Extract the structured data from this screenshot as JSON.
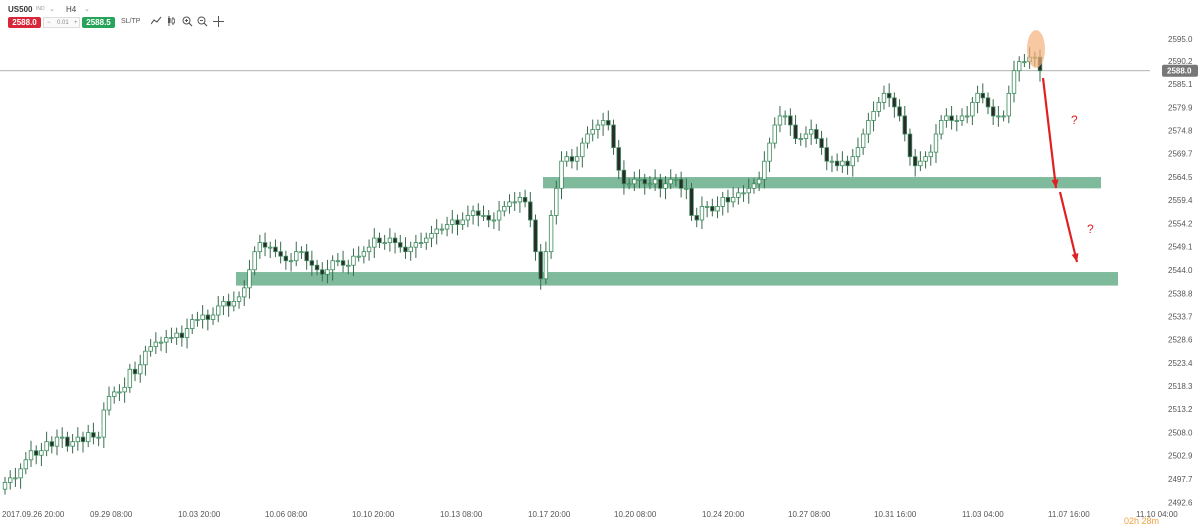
{
  "toolbar": {
    "symbol": "US500",
    "symbol_sub": "IND",
    "timeframe": "H4",
    "sell_price": "2588.0",
    "volume_minus": "−",
    "volume": "0.01",
    "volume_plus": "+",
    "buy_price": "2588.5",
    "sltp_label": "SL/TP",
    "icons": [
      "line-chart-icon",
      "candles-icon",
      "zoom-in-icon",
      "zoom-out-icon",
      "crosshair-icon"
    ]
  },
  "timer": "02h 28m",
  "colors": {
    "up_candle": "#ffffff",
    "down_candle": "#2a2a2a",
    "candle_border": "#3a8a5a",
    "zone": "#6aae8c",
    "arrow": "#e02020",
    "question": "#e02020",
    "highlight": "#f5b07a",
    "price_label_bg": "#777777"
  },
  "chart_data": {
    "type": "candlestick",
    "title": "",
    "xlabel": "",
    "ylabel": "",
    "ylim": [
      2492.0,
      2597.0
    ],
    "y_ticks": [
      "2595.0",
      "2590.2",
      "2585.1",
      "2579.9",
      "2574.8",
      "2569.7",
      "2564.5",
      "2559.4",
      "2554.2",
      "2549.1",
      "2544.0",
      "2538.8",
      "2533.7",
      "2528.6",
      "2523.4",
      "2518.3",
      "2513.2",
      "2508.0",
      "2502.9",
      "2497.7",
      "2492.6"
    ],
    "x_ticks": [
      "2017.09.26 20:00",
      "09.29 08:00",
      "10.03 20:00",
      "10.06 08:00",
      "10.10 20:00",
      "10.13 08:00",
      "10.17 20:00",
      "10.20 08:00",
      "10.24 20:00",
      "10.27 08:00",
      "10.31 16:00",
      "11.03 04:00",
      "11.07 16:00",
      "11.10 04:00"
    ],
    "current_price": "2588.0",
    "closes": [
      2497,
      2498,
      2498,
      2500,
      2502,
      2504,
      2503,
      2504,
      2506,
      2505,
      2507,
      2507,
      2505,
      2506,
      2507,
      2506,
      2508,
      2507,
      2507,
      2513,
      2516,
      2517,
      2517,
      2518,
      2522,
      2521,
      2523,
      2526,
      2527,
      2528,
      2528,
      2529,
      2529,
      2530,
      2529,
      2531,
      2533,
      2533,
      2534,
      2533,
      2534,
      2536,
      2537,
      2536,
      2537,
      2538,
      2540,
      2544,
      2548,
      2550,
      2549,
      2549,
      2548,
      2547,
      2546,
      2546,
      2548,
      2548,
      2546,
      2545,
      2544,
      2543,
      2544,
      2546,
      2546,
      2545,
      2545,
      2547,
      2547,
      2548,
      2549,
      2551,
      2550,
      2550,
      2551,
      2550,
      2549,
      2548,
      2549,
      2550,
      2550,
      2551,
      2552,
      2553,
      2553,
      2554,
      2555,
      2554,
      2555,
      2556,
      2557,
      2556,
      2556,
      2555,
      2555,
      2557,
      2558,
      2559,
      2559,
      2560,
      2559,
      2555,
      2548,
      2542,
      2548,
      2556,
      2562,
      2568,
      2569,
      2568,
      2569,
      2572,
      2574,
      2575,
      2576,
      2577,
      2576,
      2571,
      2566,
      2563,
      2563,
      2564,
      2564,
      2563,
      2563,
      2564,
      2562,
      2563,
      2564,
      2564,
      2562,
      2562,
      2556,
      2555,
      2558,
      2558,
      2557,
      2558,
      2560,
      2559,
      2560,
      2561,
      2561,
      2562,
      2563,
      2564,
      2568,
      2572,
      2576,
      2578,
      2578,
      2576,
      2573,
      2573,
      2574,
      2575,
      2573,
      2571,
      2568,
      2568,
      2567,
      2568,
      2567,
      2569,
      2571,
      2574,
      2577,
      2579,
      2581,
      2583,
      2582,
      2580,
      2578,
      2574,
      2569,
      2567,
      2568,
      2569,
      2570,
      2574,
      2577,
      2578,
      2577,
      2577,
      2578,
      2578,
      2581,
      2583,
      2582,
      2580,
      2578,
      2578,
      2578,
      2583,
      2588,
      2590,
      2590,
      2591,
      2591,
      2588
    ],
    "zones": [
      {
        "low": 2562.0,
        "high": 2564.5
      },
      {
        "low": 2540.5,
        "high": 2543.5
      }
    ],
    "annotations": [
      "?",
      "?"
    ]
  }
}
